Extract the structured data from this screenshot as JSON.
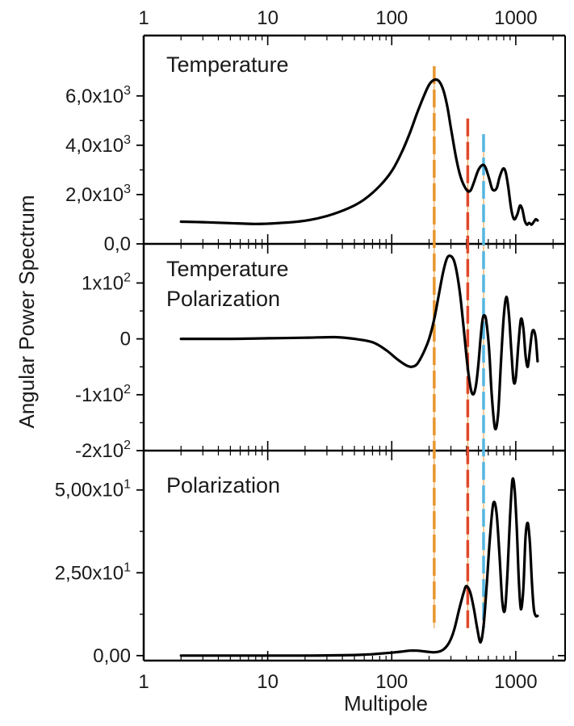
{
  "chart_data": {
    "type": "line",
    "xscale": "log",
    "xlabel": "Multipole",
    "ylabel": "Angular Power Spectrum",
    "xlim": [
      1,
      2500
    ],
    "x_ticks": [
      1,
      10,
      100,
      1000
    ],
    "x_tick_labels": [
      "1",
      "10",
      "100",
      "1000"
    ],
    "panels": [
      {
        "title_lines": [
          "Temperature"
        ],
        "ylim": [
          0,
          7400
        ],
        "y_ticks": [
          {
            "value": 0,
            "base": "0,0",
            "exp": ""
          },
          {
            "value": 2000,
            "base": "2,0x10",
            "exp": "3"
          },
          {
            "value": 4000,
            "base": "4,0x10",
            "exp": "3"
          },
          {
            "value": 6000,
            "base": "6,0x10",
            "exp": "3"
          }
        ],
        "series": [
          {
            "x": [
              2,
              3,
              5,
              8,
              12,
              20,
              30,
              45,
              60,
              80,
              100,
              120,
              140,
              160,
              180,
              200,
              220,
              240,
              260,
              280,
              300,
              330,
              360,
              400,
              430,
              460,
              500,
              540,
              570,
              610,
              650,
              700,
              740,
              790,
              830,
              870,
              920,
              970,
              1030,
              1080,
              1130,
              1180,
              1230,
              1280,
              1340,
              1400,
              1450,
              1500
            ],
            "y": [
              900,
              880,
              840,
              810,
              840,
              940,
              1130,
              1450,
              1800,
              2350,
              2950,
              3700,
              4500,
              5300,
              5950,
              6450,
              6650,
              6600,
              6250,
              5600,
              4700,
              3500,
              2700,
              2200,
              2150,
              2500,
              3000,
              3200,
              3100,
              2650,
              2200,
              2250,
              2700,
              3050,
              2900,
              2300,
              1400,
              1000,
              1200,
              1550,
              1400,
              950,
              780,
              850,
              780,
              900,
              1000,
              950
            ]
          }
        ]
      },
      {
        "title_lines": [
          "Temperature",
          "Polarization"
        ],
        "ylim": [
          -200,
          170
        ],
        "y_ticks": [
          {
            "value": -200,
            "base": "-2x10",
            "exp": "2"
          },
          {
            "value": -100,
            "base": "-1x10",
            "exp": "2"
          },
          {
            "value": 0,
            "base": "0",
            "exp": ""
          },
          {
            "value": 100,
            "base": "1x10",
            "exp": "2"
          }
        ],
        "series": [
          {
            "x": [
              2,
              5,
              10,
              20,
              35,
              50,
              70,
              90,
              110,
              130,
              145,
              160,
              180,
              200,
              220,
              240,
              260,
              280,
              300,
              320,
              340,
              360,
              380,
              400,
              420,
              440,
              460,
              480,
              500,
              520,
              540,
              560,
              580,
              610,
              640,
              680,
              720,
              760,
              800,
              840,
              880,
              920,
              960,
              1000,
              1050,
              1100,
              1150,
              1200,
              1250,
              1300,
              1350,
              1400,
              1450,
              1500
            ],
            "y": [
              0,
              0,
              1,
              2,
              3,
              0,
              -6,
              -20,
              -36,
              -47,
              -50,
              -45,
              -25,
              0,
              35,
              80,
              120,
              145,
              148,
              138,
              110,
              70,
              20,
              -30,
              -70,
              -95,
              -98,
              -80,
              -45,
              0,
              35,
              42,
              30,
              -20,
              -100,
              -160,
              -135,
              -40,
              40,
              75,
              45,
              -20,
              -75,
              -70,
              -10,
              35,
              20,
              -30,
              -50,
              -20,
              10,
              15,
              0,
              -40
            ]
          }
        ]
      },
      {
        "title_lines": [
          "Polarization"
        ],
        "ylim": [
          -1.5,
          57
        ],
        "y_ticks": [
          {
            "value": 0,
            "base": "0,00",
            "exp": ""
          },
          {
            "value": 25,
            "base": "2,50x10",
            "exp": "1"
          },
          {
            "value": 50,
            "base": "5,00x10",
            "exp": "1"
          }
        ],
        "series": [
          {
            "x": [
              2,
              5,
              10,
              20,
              40,
              60,
              80,
              100,
              120,
              140,
              160,
              180,
              200,
              220,
              240,
              260,
              280,
              300,
              320,
              350,
              380,
              400,
              430,
              460,
              490,
              520,
              550,
              580,
              620,
              660,
              700,
              740,
              780,
              820,
              860,
              900,
              940,
              980,
              1020,
              1060,
              1100,
              1150,
              1200,
              1250,
              1300,
              1350,
              1400,
              1450,
              1500
            ],
            "y": [
              0,
              0,
              0,
              0,
              0.1,
              0.3,
              0.6,
              0.9,
              1.2,
              1.5,
              1.5,
              1.3,
              1.1,
              1.0,
              1.2,
              1.8,
              3.0,
              5.0,
              8.0,
              14.0,
              19.0,
              21.0,
              19.0,
              14.0,
              8.0,
              4.0,
              9.0,
              20.0,
              36.0,
              46.0,
              43.0,
              30.0,
              16.0,
              14.0,
              26.0,
              42.0,
              53.0,
              50.0,
              38.0,
              22.0,
              14.0,
              20.0,
              36.0,
              40.0,
              34.0,
              22.0,
              14.0,
              12.0,
              12.0
            ]
          }
        ]
      }
    ],
    "markers": [
      {
        "x": 220,
        "color": "#e8962e",
        "y_from": 275,
        "y_to": 5650
      },
      {
        "x": 410,
        "color": "#e0492b",
        "y_from": 275,
        "y_to": 5150
      },
      {
        "x": 550,
        "color": "#55b6e0",
        "y_from": 275,
        "y_to": 5000
      }
    ]
  }
}
